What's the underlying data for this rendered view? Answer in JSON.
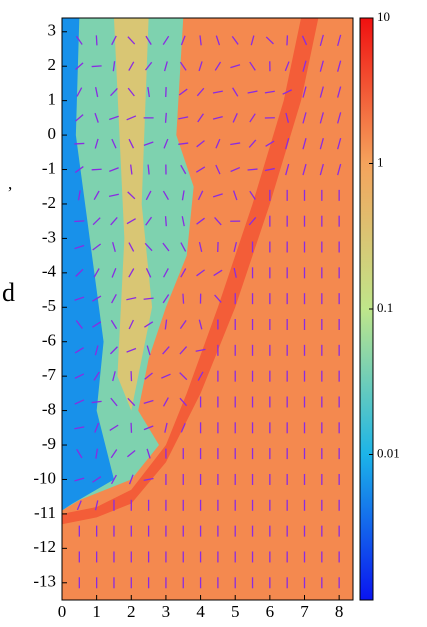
{
  "chart_data": {
    "type": "field",
    "xlim": [
      0,
      8.4
    ],
    "ylim": [
      -13.5,
      3.4
    ],
    "xticks": [
      0,
      1,
      2,
      3,
      4,
      5,
      6,
      7,
      8
    ],
    "yticks": [
      3,
      2,
      1,
      0,
      -1,
      -2,
      -3,
      -4,
      -5,
      -6,
      -7,
      -8,
      -9,
      -10,
      -11,
      -12,
      -13
    ],
    "clim": [
      0.001,
      10
    ],
    "cscale": "log",
    "cticks": [
      10,
      1,
      0.1,
      0.01
    ],
    "colormap": [
      "#0a14f0",
      "#1cb4e8",
      "#bfe68a",
      "#f5a35c",
      "#f01010"
    ],
    "background_value": 1.5,
    "regions": [
      {
        "value": 3,
        "points": [
          [
            0,
            -11.3
          ],
          [
            1,
            -11.1
          ],
          [
            2,
            -10.7
          ],
          [
            3,
            -9.5
          ],
          [
            4,
            -7.5
          ],
          [
            5,
            -5
          ],
          [
            6,
            -2
          ],
          [
            6.9,
            1
          ],
          [
            7.4,
            3.4
          ],
          [
            6.9,
            3.4
          ],
          [
            6.4,
            1
          ],
          [
            5.5,
            -2
          ],
          [
            4.5,
            -5
          ],
          [
            3.6,
            -7.5
          ],
          [
            3,
            -9
          ],
          [
            2,
            -10.3
          ],
          [
            1,
            -10.8
          ],
          [
            0,
            -11
          ]
        ]
      },
      {
        "value": 0.04,
        "points": [
          [
            0,
            3.4
          ],
          [
            3.5,
            3.4
          ],
          [
            3.3,
            0
          ],
          [
            3.8,
            -1.5
          ],
          [
            3.6,
            -3.5
          ],
          [
            3,
            -5
          ],
          [
            2.5,
            -6.5
          ],
          [
            2.2,
            -8
          ],
          [
            2.8,
            -9
          ],
          [
            2,
            -10
          ],
          [
            0.5,
            -10.6
          ],
          [
            0,
            -10.9
          ]
        ]
      },
      {
        "value": 0.3,
        "points": [
          [
            1.5,
            3.4
          ],
          [
            2.5,
            3.4
          ],
          [
            2.3,
            -2
          ],
          [
            2.6,
            -5
          ],
          [
            2,
            -8
          ],
          [
            1.6,
            -7
          ],
          [
            1.8,
            -3
          ]
        ]
      },
      {
        "value": 0.006,
        "points": [
          [
            0,
            3.4
          ],
          [
            0.5,
            3.4
          ],
          [
            0.4,
            0
          ],
          [
            0.8,
            -3
          ],
          [
            1.2,
            -6
          ],
          [
            1,
            -8
          ],
          [
            1.5,
            -10
          ],
          [
            0.3,
            -10.7
          ],
          [
            0,
            -10.9
          ]
        ]
      }
    ],
    "arrow_color": "#8a2be2",
    "margin_text": [
      ",",
      "d"
    ]
  }
}
